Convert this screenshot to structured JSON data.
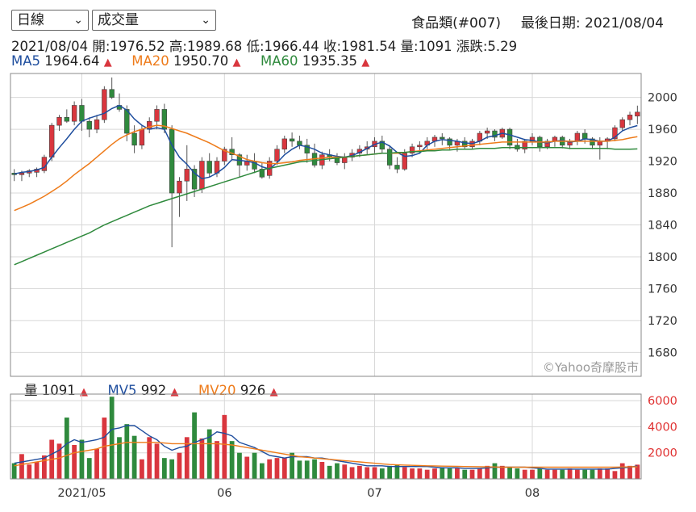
{
  "controls": {
    "period_select": "日線",
    "indicator_select": "成交量"
  },
  "header": {
    "symbol": "食品類(#007)",
    "last_date_label": "最後日期: 2021/08/04"
  },
  "ohlc": {
    "date": "2021/08/04",
    "open": "開:1976.52",
    "high": "高:1989.68",
    "low": "低:1966.44",
    "close": "收:1981.54",
    "volume": "量:1091",
    "change": "漲跌:5.29"
  },
  "legend_price": [
    {
      "label": "MA5",
      "value": "1964.64",
      "color": "#1f4e9e",
      "arrow": "▲"
    },
    {
      "label": "MA20",
      "value": "1950.70",
      "color": "#ee7b1a",
      "arrow": "▲"
    },
    {
      "label": "MA60",
      "value": "1935.35",
      "color": "#2f8a3d",
      "arrow": "▲"
    }
  ],
  "legend_volume": [
    {
      "label": "量",
      "value": "1091",
      "color": "#222222",
      "arrow": "▲"
    },
    {
      "label": "MV5",
      "value": "992",
      "color": "#1f4e9e",
      "arrow": "▲"
    },
    {
      "label": "MV20",
      "value": "926",
      "color": "#ee7b1a",
      "arrow": "▲"
    }
  ],
  "watermark": "©Yahoo奇摩股市",
  "colors": {
    "up": "#d9363e",
    "down": "#2f8a3d",
    "ma5": "#1f4e9e",
    "ma20": "#ee7b1a",
    "ma60": "#2f8a3d",
    "grid": "#d8d8d8",
    "arrow": "#d9363e"
  },
  "chart_data": [
    {
      "type": "candlestick",
      "title": "",
      "ylim": [
        1650,
        2030
      ],
      "yticks": [
        1680,
        1720,
        1760,
        1800,
        1840,
        1880,
        1920,
        1960,
        2000
      ],
      "xticks": [
        {
          "label": "2021/05",
          "index": 9
        },
        {
          "label": "06",
          "index": 28
        },
        {
          "label": "07",
          "index": 48
        },
        {
          "label": "08",
          "index": 69
        }
      ],
      "candles": [
        [
          1905,
          1910,
          1895,
          1903
        ],
        [
          1903,
          1908,
          1895,
          1905
        ],
        [
          1905,
          1910,
          1900,
          1908
        ],
        [
          1906,
          1912,
          1900,
          1910
        ],
        [
          1908,
          1928,
          1905,
          1925
        ],
        [
          1925,
          1968,
          1920,
          1965
        ],
        [
          1965,
          1978,
          1958,
          1975
        ],
        [
          1975,
          1985,
          1968,
          1970
        ],
        [
          1970,
          1995,
          1965,
          1990
        ],
        [
          1990,
          1998,
          1958,
          1970
        ],
        [
          1970,
          1975,
          1950,
          1960
        ],
        [
          1960,
          1978,
          1955,
          1972
        ],
        [
          1972,
          2014,
          1968,
          2010
        ],
        [
          2010,
          2025,
          1998,
          2000
        ],
        [
          1990,
          2005,
          1982,
          1985
        ],
        [
          1985,
          1990,
          1945,
          1955
        ],
        [
          1955,
          1965,
          1930,
          1940
        ],
        [
          1940,
          1965,
          1935,
          1960
        ],
        [
          1960,
          1975,
          1955,
          1970
        ],
        [
          1970,
          1990,
          1960,
          1985
        ],
        [
          1985,
          1992,
          1955,
          1960
        ],
        [
          1960,
          1965,
          1812,
          1880
        ],
        [
          1880,
          1900,
          1850,
          1895
        ],
        [
          1895,
          1940,
          1870,
          1910
        ],
        [
          1910,
          1915,
          1875,
          1885
        ],
        [
          1885,
          1925,
          1880,
          1920
        ],
        [
          1920,
          1930,
          1900,
          1905
        ],
        [
          1905,
          1925,
          1900,
          1920
        ],
        [
          1920,
          1938,
          1915,
          1935
        ],
        [
          1935,
          1950,
          1922,
          1928
        ],
        [
          1928,
          1930,
          1900,
          1915
        ],
        [
          1915,
          1928,
          1908,
          1920
        ],
        [
          1920,
          1930,
          1905,
          1910
        ],
        [
          1910,
          1918,
          1898,
          1900
        ],
        [
          1902,
          1925,
          1898,
          1920
        ],
        [
          1920,
          1940,
          1915,
          1935
        ],
        [
          1935,
          1952,
          1930,
          1948
        ],
        [
          1948,
          1956,
          1938,
          1945
        ],
        [
          1945,
          1952,
          1935,
          1940
        ],
        [
          1940,
          1948,
          1918,
          1930
        ],
        [
          1930,
          1942,
          1912,
          1915
        ],
        [
          1915,
          1932,
          1910,
          1928
        ],
        [
          1928,
          1935,
          1920,
          1925
        ],
        [
          1925,
          1930,
          1915,
          1918
        ],
        [
          1918,
          1930,
          1910,
          1925
        ],
        [
          1925,
          1935,
          1920,
          1930
        ],
        [
          1930,
          1940,
          1925,
          1935
        ],
        [
          1935,
          1945,
          1928,
          1938
        ],
        [
          1938,
          1950,
          1930,
          1945
        ],
        [
          1945,
          1952,
          1930,
          1935
        ],
        [
          1935,
          1940,
          1910,
          1915
        ],
        [
          1915,
          1925,
          1905,
          1910
        ],
        [
          1910,
          1935,
          1908,
          1930
        ],
        [
          1930,
          1942,
          1925,
          1938
        ],
        [
          1938,
          1945,
          1930,
          1940
        ],
        [
          1940,
          1950,
          1935,
          1945
        ],
        [
          1945,
          1953,
          1938,
          1950
        ],
        [
          1950,
          1955,
          1940,
          1948
        ],
        [
          1948,
          1950,
          1935,
          1940
        ],
        [
          1940,
          1948,
          1932,
          1945
        ],
        [
          1945,
          1950,
          1935,
          1938
        ],
        [
          1938,
          1948,
          1935,
          1945
        ],
        [
          1945,
          1958,
          1940,
          1955
        ],
        [
          1955,
          1962,
          1948,
          1958
        ],
        [
          1958,
          1960,
          1945,
          1950
        ],
        [
          1950,
          1962,
          1948,
          1960
        ],
        [
          1960,
          1962,
          1935,
          1940
        ],
        [
          1940,
          1948,
          1932,
          1935
        ],
        [
          1935,
          1948,
          1930,
          1945
        ],
        [
          1945,
          1955,
          1940,
          1950
        ],
        [
          1950,
          1952,
          1932,
          1938
        ],
        [
          1938,
          1948,
          1935,
          1945
        ],
        [
          1945,
          1952,
          1938,
          1950
        ],
        [
          1950,
          1952,
          1936,
          1940
        ],
        [
          1940,
          1948,
          1935,
          1945
        ],
        [
          1945,
          1958,
          1940,
          1955
        ],
        [
          1955,
          1960,
          1942,
          1948
        ],
        [
          1948,
          1950,
          1935,
          1940
        ],
        [
          1940,
          1950,
          1922,
          1945
        ],
        [
          1945,
          1950,
          1935,
          1948
        ],
        [
          1948,
          1965,
          1945,
          1962
        ],
        [
          1962,
          1975,
          1958,
          1972
        ],
        [
          1972,
          1982,
          1965,
          1978
        ],
        [
          1976.52,
          1989.68,
          1966.44,
          1981.54
        ]
      ],
      "series": [
        {
          "name": "MA5",
          "values": [
            1904,
            1906,
            1907,
            1909,
            1912,
            1925,
            1937,
            1948,
            1960,
            1970,
            1974,
            1977,
            1980,
            1986,
            1990,
            1984,
            1973,
            1965,
            1960,
            1962,
            1960,
            1940,
            1925,
            1916,
            1905,
            1898,
            1900,
            1905,
            1912,
            1922,
            1921,
            1920,
            1918,
            1913,
            1910,
            1918,
            1928,
            1935,
            1940,
            1938,
            1935,
            1930,
            1928,
            1926,
            1925,
            1927,
            1931,
            1936,
            1941,
            1944,
            1939,
            1931,
            1926,
            1927,
            1930,
            1940,
            1945,
            1947,
            1946,
            1945,
            1943,
            1942,
            1945,
            1950,
            1952,
            1955,
            1953,
            1950,
            1947,
            1946,
            1944,
            1943,
            1945,
            1946,
            1944,
            1945,
            1948,
            1947,
            1945,
            1945,
            1950,
            1958,
            1962,
            1964.64
          ]
        },
        {
          "name": "MA20",
          "values": [
            1858,
            1862,
            1866,
            1871,
            1876,
            1882,
            1888,
            1895,
            1903,
            1910,
            1917,
            1925,
            1933,
            1941,
            1948,
            1953,
            1957,
            1960,
            1963,
            1965,
            1964,
            1961,
            1958,
            1955,
            1951,
            1947,
            1943,
            1938,
            1933,
            1930,
            1926,
            1922,
            1920,
            1918,
            1917,
            1917,
            1918,
            1919,
            1921,
            1922,
            1923,
            1924,
            1925,
            1925,
            1925,
            1926,
            1927,
            1928,
            1929,
            1930,
            1930,
            1930,
            1931,
            1932,
            1933,
            1934,
            1935,
            1936,
            1937,
            1938,
            1939,
            1940,
            1941,
            1942,
            1943,
            1944,
            1944,
            1944,
            1944,
            1944,
            1944,
            1944,
            1945,
            1945,
            1945,
            1945,
            1945,
            1945,
            1945,
            1945,
            1946,
            1947,
            1949,
            1950.7
          ]
        },
        {
          "name": "MA60",
          "values": [
            1790,
            1794,
            1798,
            1802,
            1806,
            1810,
            1814,
            1818,
            1822,
            1826,
            1830,
            1835,
            1840,
            1844,
            1848,
            1852,
            1856,
            1860,
            1864,
            1867,
            1870,
            1873,
            1876,
            1879,
            1882,
            1885,
            1888,
            1891,
            1894,
            1897,
            1900,
            1903,
            1906,
            1909,
            1911,
            1913,
            1915,
            1917,
            1919,
            1920,
            1921,
            1922,
            1923,
            1924,
            1925,
            1926,
            1927,
            1928,
            1929,
            1930,
            1930,
            1931,
            1931,
            1932,
            1932,
            1933,
            1933,
            1934,
            1934,
            1935,
            1935,
            1935,
            1936,
            1936,
            1936,
            1937,
            1937,
            1937,
            1937,
            1937,
            1937,
            1937,
            1937,
            1937,
            1936,
            1936,
            1936,
            1936,
            1936,
            1936,
            1935,
            1935,
            1935,
            1935.35
          ]
        }
      ]
    },
    {
      "type": "bar",
      "title": "",
      "ylim": [
        0,
        6500
      ],
      "yticks": [
        2000,
        4000,
        6000
      ],
      "values": [
        1200,
        1900,
        1100,
        1300,
        1800,
        3000,
        2700,
        4700,
        2600,
        3000,
        1600,
        2300,
        4700,
        6300,
        3200,
        4200,
        3300,
        1500,
        3200,
        2700,
        1600,
        1500,
        2000,
        3200,
        5100,
        3100,
        3800,
        2900,
        4900,
        2900,
        2000,
        1700,
        2000,
        1200,
        1500,
        1600,
        1600,
        2000,
        1400,
        1400,
        1500,
        1300,
        1000,
        1200,
        1100,
        900,
        1000,
        900,
        900,
        800,
        1000,
        1100,
        900,
        800,
        800,
        700,
        800,
        900,
        800,
        800,
        700,
        700,
        800,
        1000,
        1200,
        1000,
        900,
        800,
        700,
        700,
        800,
        700,
        700,
        700,
        800,
        700,
        700,
        700,
        800,
        800,
        600,
        1200,
        1000,
        1091
      ],
      "series": [
        {
          "name": "MV5",
          "values": [
            1200,
            1300,
            1400,
            1500,
            1600,
            1900,
            2200,
            2700,
            3000,
            2800,
            2900,
            3000,
            3200,
            3800,
            3900,
            4100,
            4100,
            3700,
            3300,
            3000,
            2500,
            2200,
            2400,
            2500,
            2800,
            3000,
            3200,
            3600,
            3500,
            3300,
            2800,
            2600,
            2400,
            2100,
            1800,
            1700,
            1600,
            1700,
            1700,
            1700,
            1600,
            1600,
            1500,
            1400,
            1300,
            1200,
            1100,
            1000,
            1000,
            1000,
            950,
            950,
            950,
            950,
            950,
            950,
            900,
            850,
            850,
            850,
            800,
            800,
            800,
            850,
            900,
            900,
            900,
            900,
            900,
            850,
            800,
            750,
            750,
            750,
            750,
            750,
            750,
            750,
            750,
            750,
            800,
            850,
            900,
            992
          ]
        },
        {
          "name": "MV20",
          "values": [
            1000,
            1100,
            1200,
            1300,
            1400,
            1500,
            1600,
            1800,
            2000,
            2100,
            2200,
            2300,
            2500,
            2600,
            2700,
            2800,
            2800,
            2800,
            2800,
            2800,
            2750,
            2700,
            2700,
            2700,
            2700,
            2700,
            2700,
            2700,
            2650,
            2600,
            2500,
            2400,
            2300,
            2200,
            2100,
            2000,
            1900,
            1800,
            1700,
            1650,
            1600,
            1550,
            1500,
            1450,
            1400,
            1350,
            1300,
            1250,
            1200,
            1150,
            1100,
            1080,
            1060,
            1040,
            1020,
            1000,
            990,
            980,
            970,
            960,
            950,
            940,
            930,
            920,
            910,
            900,
            900,
            900,
            900,
            900,
            900,
            900,
            900,
            900,
            900,
            900,
            900,
            900,
            900,
            900,
            900,
            910,
            920,
            926
          ]
        }
      ]
    }
  ]
}
